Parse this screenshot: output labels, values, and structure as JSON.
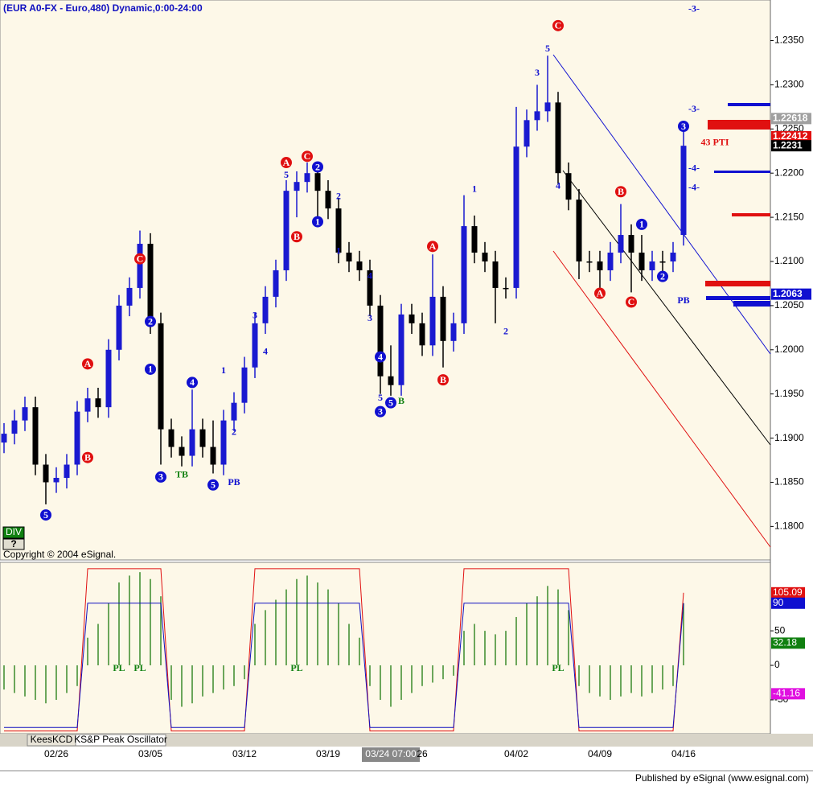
{
  "chart_data": [
    {
      "type": "candlestick",
      "title": "(EUR A0-FX - Euro,480) Dynamic,0:00-24:00",
      "categories": [
        null,
        null,
        null,
        null,
        null,
        "02/26",
        null,
        null,
        null,
        null,
        null,
        null,
        null,
        null,
        "03/05",
        null,
        null,
        null,
        null,
        null,
        null,
        null,
        null,
        "03/12",
        null,
        null,
        null,
        null,
        null,
        null,
        null,
        "03/19",
        null,
        null,
        null,
        null,
        null,
        "03/24 07:00",
        null,
        null,
        "26",
        null,
        null,
        null,
        null,
        null,
        null,
        null,
        null,
        "04/02",
        null,
        null,
        null,
        null,
        null,
        null,
        null,
        "04/09",
        null,
        null,
        null,
        null,
        null,
        null,
        null,
        "04/16"
      ],
      "open": [
        1.1895,
        1.1905,
        1.192,
        1.1935,
        1.187,
        1.185,
        1.1855,
        1.187,
        1.193,
        1.1945,
        1.1935,
        1.2,
        1.205,
        1.207,
        1.212,
        1.203,
        1.191,
        1.189,
        1.188,
        1.191,
        1.189,
        1.187,
        1.192,
        1.194,
        1.198,
        1.203,
        1.206,
        1.209,
        1.218,
        1.219,
        1.22,
        1.218,
        1.216,
        1.211,
        1.21,
        1.209,
        1.205,
        1.197,
        1.196,
        1.204,
        1.203,
        1.2005,
        1.206,
        1.201,
        1.203,
        1.214,
        1.211,
        1.21,
        1.207,
        1.207,
        1.223,
        1.226,
        1.227,
        1.228,
        1.22,
        1.217,
        1.21,
        1.21,
        1.209,
        1.211,
        1.213,
        1.211,
        1.209,
        1.21,
        1.21,
        1.213
      ],
      "high": [
        1.1917,
        1.1932,
        1.1947,
        1.1947,
        1.1882,
        1.1867,
        1.1882,
        1.1942,
        1.1957,
        1.1957,
        1.2012,
        1.2062,
        1.2082,
        1.2135,
        1.2132,
        1.2042,
        1.1922,
        1.1902,
        1.1955,
        1.1922,
        1.192,
        1.1932,
        1.1952,
        1.1992,
        1.2042,
        1.2072,
        1.2102,
        1.2192,
        1.2202,
        1.2212,
        1.2212,
        1.2192,
        1.2172,
        1.2122,
        1.2112,
        1.2102,
        1.2062,
        1.2005,
        1.2052,
        1.2052,
        1.2042,
        1.2108,
        1.2072,
        1.2042,
        1.2175,
        1.2152,
        1.2122,
        1.2112,
        1.2082,
        1.2275,
        1.2272,
        1.23,
        1.2333,
        1.2292,
        1.2212,
        1.2182,
        1.2112,
        1.2112,
        1.2122,
        1.2165,
        1.2142,
        1.213,
        1.2112,
        1.2112,
        1.2122,
        1.225
      ],
      "low": [
        1.1883,
        1.1893,
        1.1908,
        1.1858,
        1.1825,
        1.1838,
        1.1843,
        1.1858,
        1.1918,
        1.1923,
        1.1923,
        1.1988,
        1.2038,
        1.2058,
        1.2018,
        1.187,
        1.1878,
        1.1868,
        1.1868,
        1.1878,
        1.186,
        1.1858,
        1.1908,
        1.1928,
        1.1968,
        1.2018,
        1.2048,
        1.2078,
        1.215,
        1.2178,
        1.215,
        1.2148,
        1.2098,
        1.2088,
        1.2078,
        1.2038,
        1.195,
        1.1948,
        1.1948,
        1.2018,
        1.1993,
        1.1993,
        1.198,
        1.1998,
        1.2018,
        1.2098,
        1.2088,
        1.203,
        1.2058,
        1.2058,
        1.2218,
        1.2248,
        1.2258,
        1.2188,
        1.2158,
        1.208,
        1.2088,
        1.207,
        1.2078,
        1.2098,
        1.2065,
        1.2078,
        1.2078,
        1.2088,
        1.2088,
        1.2118
      ],
      "close": [
        1.1905,
        1.192,
        1.1935,
        1.187,
        1.185,
        1.1855,
        1.187,
        1.193,
        1.1945,
        1.1935,
        1.2,
        1.205,
        1.207,
        1.212,
        1.203,
        1.191,
        1.189,
        1.188,
        1.191,
        1.189,
        1.187,
        1.192,
        1.194,
        1.198,
        1.203,
        1.206,
        1.209,
        1.218,
        1.219,
        1.22,
        1.218,
        1.216,
        1.211,
        1.21,
        1.209,
        1.205,
        1.197,
        1.196,
        1.204,
        1.203,
        1.2005,
        1.206,
        1.201,
        1.203,
        1.214,
        1.211,
        1.21,
        1.207,
        1.207,
        1.223,
        1.226,
        1.227,
        1.228,
        1.22,
        1.217,
        1.21,
        1.21,
        1.209,
        1.211,
        1.213,
        1.211,
        1.209,
        1.21,
        1.21,
        1.211,
        1.2231
      ],
      "up_color": "#1a1ad0",
      "down_color": "#000000",
      "ylim": [
        1.1763,
        1.2396
      ],
      "yticks": [
        {
          "value": 1.235,
          "label": "1.2350"
        },
        {
          "value": 1.23,
          "label": "1.2300"
        },
        {
          "value": 1.225,
          "label": "1.2250"
        },
        {
          "value": 1.22,
          "label": "1.2200"
        },
        {
          "value": 1.215,
          "label": "1.2150"
        },
        {
          "value": 1.21,
          "label": "1.2100"
        },
        {
          "value": 1.205,
          "label": "1.2050"
        },
        {
          "value": 1.2,
          "label": "1.2000"
        },
        {
          "value": 1.195,
          "label": "1.1950"
        },
        {
          "value": 1.19,
          "label": "1.1900"
        },
        {
          "value": 1.185,
          "label": "1.1850"
        },
        {
          "value": 1.18,
          "label": "1.1800"
        }
      ],
      "price_markers": [
        {
          "value": 1.22618,
          "color": "#a0a0a0"
        },
        {
          "value": 1.22412,
          "color": "#e01010"
        },
        {
          "value": 1.2231,
          "color": "#000000"
        },
        {
          "value": 1.2063,
          "color": "#1010d0"
        }
      ],
      "annotations": [
        {
          "text": "5",
          "candle": 4,
          "price": 1.1813,
          "style": "blue-circle"
        },
        {
          "text": "B",
          "candle": 8,
          "price": 1.1878,
          "style": "red-circle"
        },
        {
          "text": "A",
          "candle": 8,
          "price": 1.1984,
          "style": "red-circle"
        },
        {
          "text": "1",
          "candle": 14,
          "price": 1.1978,
          "style": "blue-circle"
        },
        {
          "text": "2",
          "candle": 14,
          "price": 1.2032,
          "style": "blue-circle"
        },
        {
          "text": "C",
          "candle": 13,
          "price": 1.2103,
          "style": "red-circle"
        },
        {
          "text": "3",
          "candle": 15,
          "price": 1.1856,
          "style": "blue-circle"
        },
        {
          "text": "TB",
          "candle": 17,
          "price": 1.1859,
          "style": "green"
        },
        {
          "text": "4",
          "candle": 18,
          "price": 1.1963,
          "style": "blue-circle"
        },
        {
          "text": "5",
          "candle": 20,
          "price": 1.1847,
          "style": "blue-circle"
        },
        {
          "text": "PB",
          "candle": 22,
          "price": 1.185,
          "style": "blue"
        },
        {
          "text": "1",
          "candle": 21,
          "price": 1.1977,
          "style": "blue"
        },
        {
          "text": "2",
          "candle": 22,
          "price": 1.1907,
          "style": "blue"
        },
        {
          "text": "3",
          "candle": 24,
          "price": 1.2039,
          "style": "blue"
        },
        {
          "text": "4",
          "candle": 25,
          "price": 1.1998,
          "style": "blue"
        },
        {
          "text": "5",
          "candle": 27,
          "price": 1.2198,
          "style": "blue"
        },
        {
          "text": "A",
          "candle": 27,
          "price": 1.2212,
          "style": "red-circle"
        },
        {
          "text": "C",
          "candle": 29,
          "price": 1.2219,
          "style": "red-circle"
        },
        {
          "text": "B",
          "candle": 28,
          "price": 1.2128,
          "style": "red-circle"
        },
        {
          "text": "2",
          "candle": 30,
          "price": 1.2207,
          "style": "blue-circle"
        },
        {
          "text": "1",
          "candle": 30,
          "price": 1.2145,
          "style": "blue-circle"
        },
        {
          "text": "2",
          "candle": 32,
          "price": 1.2174,
          "style": "blue"
        },
        {
          "text": "1",
          "candle": 32,
          "price": 1.2112,
          "style": "blue"
        },
        {
          "text": "4",
          "candle": 35,
          "price": 1.2084,
          "style": "blue"
        },
        {
          "text": "3",
          "candle": 35,
          "price": 1.2036,
          "style": "blue"
        },
        {
          "text": "4",
          "candle": 36,
          "price": 1.1992,
          "style": "blue-circle"
        },
        {
          "text": "5",
          "candle": 36,
          "price": 1.1946,
          "style": "blue"
        },
        {
          "text": "3",
          "candle": 36,
          "price": 1.193,
          "style": "blue-circle"
        },
        {
          "text": "5",
          "candle": 37,
          "price": 1.194,
          "style": "blue-circle"
        },
        {
          "text": "B",
          "candle": 38,
          "price": 1.1942,
          "style": "green"
        },
        {
          "text": "A",
          "candle": 41,
          "price": 1.2117,
          "style": "red-circle"
        },
        {
          "text": "B",
          "candle": 42,
          "price": 1.1966,
          "style": "red-circle"
        },
        {
          "text": "1",
          "candle": 45,
          "price": 1.2182,
          "style": "blue"
        },
        {
          "text": "2",
          "candle": 48,
          "price": 1.2021,
          "style": "blue"
        },
        {
          "text": "3",
          "candle": 51,
          "price": 1.2314,
          "style": "blue"
        },
        {
          "text": "5",
          "candle": 52,
          "price": 1.2341,
          "style": "blue"
        },
        {
          "text": "C",
          "candle": 53,
          "price": 1.2367,
          "style": "red-circle"
        },
        {
          "text": "4",
          "candle": 53,
          "price": 1.2186,
          "style": "blue"
        },
        {
          "text": "B",
          "candle": 59,
          "price": 1.2179,
          "style": "red-circle"
        },
        {
          "text": "A",
          "candle": 57,
          "price": 1.2064,
          "style": "red-circle"
        },
        {
          "text": "C",
          "candle": 60,
          "price": 1.2054,
          "style": "red-circle"
        },
        {
          "text": "1",
          "candle": 61,
          "price": 1.2142,
          "style": "blue-circle"
        },
        {
          "text": "2",
          "candle": 63,
          "price": 1.2083,
          "style": "blue-circle"
        },
        {
          "text": "PB",
          "candle": 65,
          "price": 1.2056,
          "style": "blue"
        },
        {
          "text": "3",
          "candle": 65,
          "price": 1.2253,
          "style": "blue-circle"
        },
        {
          "text": "-3-",
          "candle": 66,
          "price": 1.2386,
          "style": "blue"
        },
        {
          "text": "-3-",
          "candle": 66,
          "price": 1.2273,
          "style": "blue"
        },
        {
          "text": "-4-",
          "candle": 66,
          "price": 1.2206,
          "style": "blue"
        },
        {
          "text": "-4-",
          "candle": 66,
          "price": 1.2184,
          "style": "blue"
        },
        {
          "text": "43 PTI",
          "candle": 68,
          "price": 1.2235,
          "style": "red"
        }
      ]
    },
    {
      "type": "oscillator",
      "histogram": {
        "color": "#3a8a2a",
        "values": [
          -35,
          -40,
          -45,
          -50,
          -55,
          -50,
          -40,
          -30,
          40,
          60,
          90,
          120,
          130,
          135,
          125,
          100,
          -50,
          -60,
          -55,
          -45,
          -40,
          -35,
          -30,
          -20,
          60,
          80,
          95,
          110,
          125,
          130,
          120,
          110,
          90,
          60,
          40,
          -30,
          -50,
          -60,
          -50,
          -40,
          -30,
          -25,
          -20,
          -15,
          50,
          60,
          50,
          45,
          50,
          70,
          90,
          100,
          115,
          110,
          80,
          -30,
          -40,
          -45,
          -50,
          -45,
          -40,
          -45,
          -40,
          -35,
          -30,
          90
        ]
      },
      "lines": [
        {
          "color": "#e01010",
          "values": [
            -95,
            -95,
            -95,
            -95,
            -95,
            -95,
            -95,
            -95,
            140,
            140,
            140,
            140,
            140,
            140,
            140,
            140,
            -95,
            -95,
            -95,
            -95,
            -95,
            -95,
            -95,
            -95,
            140,
            140,
            140,
            140,
            140,
            140,
            140,
            140,
            140,
            140,
            140,
            -95,
            -95,
            -95,
            -95,
            -95,
            -95,
            -95,
            -95,
            -95,
            140,
            140,
            140,
            140,
            140,
            140,
            140,
            140,
            140,
            140,
            140,
            -95,
            -95,
            -95,
            -95,
            -95,
            -95,
            -95,
            -95,
            -95,
            -95,
            105.09
          ]
        },
        {
          "color": "#1010c0",
          "values": [
            -90,
            -90,
            -90,
            -90,
            -90,
            -90,
            -90,
            -90,
            90,
            90,
            90,
            90,
            90,
            90,
            90,
            90,
            -90,
            -90,
            -90,
            -90,
            -90,
            -90,
            -90,
            -90,
            90,
            90,
            90,
            90,
            90,
            90,
            90,
            90,
            90,
            90,
            90,
            -90,
            -90,
            -90,
            -90,
            -90,
            -90,
            -90,
            -90,
            -90,
            90,
            90,
            90,
            90,
            90,
            90,
            90,
            90,
            90,
            90,
            90,
            -90,
            -90,
            -90,
            -90,
            -90,
            -90,
            -90,
            -90,
            -90,
            -90,
            90
          ]
        }
      ],
      "ylim": [
        -99,
        148
      ],
      "yticks": [
        50,
        0,
        -50
      ],
      "markers": [
        {
          "value": 105.09,
          "color": "#e01010"
        },
        {
          "value": 90,
          "color": "#1010d0"
        },
        {
          "value": 32.18,
          "color": "#108010"
        },
        {
          "value": -41.16,
          "color": "#e010e0"
        }
      ],
      "annotations": [
        {
          "text": "PL",
          "candle": 11,
          "value": -5
        },
        {
          "text": "PL",
          "candle": 13,
          "value": -5
        },
        {
          "text": "PL",
          "candle": 28,
          "value": -5
        },
        {
          "text": "PL",
          "candle": 53,
          "value": -5
        }
      ]
    }
  ],
  "ui": {
    "div_button": "DIV",
    "help_button": "?",
    "copyright": "Copyright © 2004 eSignal.",
    "tabs": [
      "KeesKCD",
      "KS&P Peak Oscillator"
    ],
    "footer": "Published by eSignal (www.esignal.com)"
  }
}
